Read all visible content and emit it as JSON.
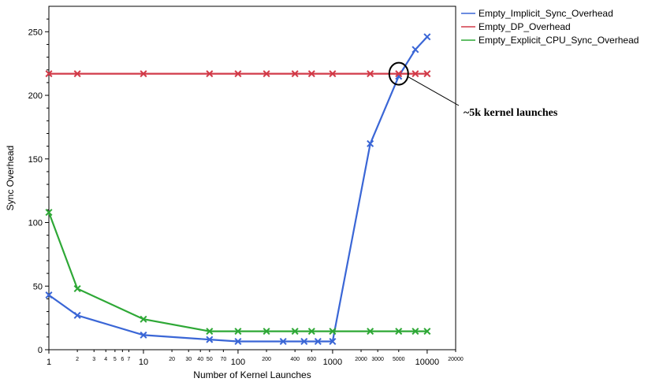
{
  "chart_data": {
    "type": "line",
    "xlabel": "Number of Kernel Launches",
    "ylabel": "Sync Overhead",
    "x_scale": "log",
    "xlim": [
      1,
      20000
    ],
    "ylim": [
      0,
      270
    ],
    "y_ticks": [
      0,
      50,
      100,
      150,
      200,
      250
    ],
    "x_ticks_major": [
      1,
      10,
      100,
      1000,
      10000
    ],
    "x_ticks_minor": [
      2,
      3,
      4,
      5,
      6,
      7,
      20,
      30,
      40,
      50,
      70,
      200,
      400,
      600,
      2000,
      3000,
      5000,
      20000
    ],
    "legend_position": "top-right, outside plot",
    "series": [
      {
        "name": "Empty_Implicit_Sync_Overhead",
        "color": "#3a66d6",
        "x": [
          1,
          2,
          10,
          50,
          100,
          300,
          500,
          700,
          1000,
          2500,
          5000,
          7500,
          10000
        ],
        "values": [
          43,
          27,
          11.5,
          8,
          6.5,
          6.5,
          6.5,
          6.5,
          6.5,
          162,
          215,
          236,
          246
        ]
      },
      {
        "name": "Empty_DP_Overhead",
        "color": "#d23a48",
        "x": [
          1,
          2,
          10,
          50,
          100,
          200,
          400,
          600,
          1000,
          2500,
          5000,
          7500,
          10000
        ],
        "values": [
          217,
          217,
          217,
          217,
          217,
          217,
          217,
          217,
          217,
          217,
          217,
          217,
          217
        ]
      },
      {
        "name": "Empty_Explicit_CPU_Sync_Overhead",
        "color": "#2ea836",
        "x": [
          1,
          2,
          10,
          50,
          100,
          200,
          400,
          600,
          1000,
          2500,
          5000,
          7500,
          10000
        ],
        "values": [
          108,
          48,
          24,
          14.5,
          14.5,
          14.5,
          14.5,
          14.5,
          14.5,
          14.5,
          14.5,
          14.5,
          14.5
        ]
      }
    ],
    "annotation": {
      "text": "~5k kernel launches",
      "x": 5000,
      "y": 217
    }
  }
}
